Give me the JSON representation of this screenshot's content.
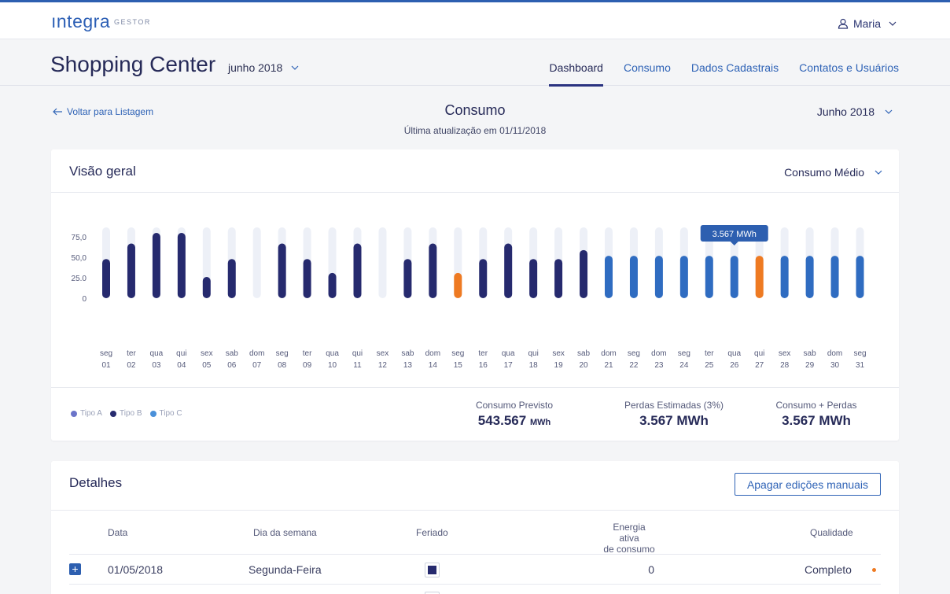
{
  "app": {
    "logo": "ıntegra",
    "logo_sub": "GESTOR",
    "user": "Maria"
  },
  "header": {
    "title": "Shopping Center",
    "month": "junho 2018",
    "tabs": [
      {
        "label": "Dashboard",
        "active": true
      },
      {
        "label": "Consumo",
        "active": false
      },
      {
        "label": "Dados Cadastrais",
        "active": false
      },
      {
        "label": "Contatos e Usuários",
        "active": false
      }
    ]
  },
  "section": {
    "back": "Voltar para Listagem",
    "title": "Consumo",
    "updated": "Última atualização em 01/11/2018",
    "period": "Junho 2018"
  },
  "overview": {
    "title": "Visão geral",
    "metric": "Consumo Médio",
    "legend": [
      {
        "label": "Tipo A",
        "color": "#6b74c9"
      },
      {
        "label": "Tipo B",
        "color": "#262a6e"
      },
      {
        "label": "Tipo C",
        "color": "#4a90d9"
      }
    ],
    "stats": [
      {
        "label": "Consumo Previsto",
        "value": "543.567",
        "unit": "MWh"
      },
      {
        "label": "Perdas Estimadas (3%)",
        "value": "3.567 MWh",
        "unit": ""
      },
      {
        "label": "Consumo + Perdas",
        "value": "3.567 MWh",
        "unit": ""
      }
    ]
  },
  "chart_data": {
    "type": "bar",
    "yticks": [
      "0",
      "25.0",
      "50,0",
      "75,0"
    ],
    "ylim": [
      0,
      81
    ],
    "days": [
      "seg",
      "ter",
      "qua",
      "qui",
      "sex",
      "sab",
      "dom",
      "seg",
      "ter",
      "qua",
      "qui",
      "sex",
      "sab",
      "dom",
      "seg",
      "ter",
      "qua",
      "qui",
      "sex",
      "sab",
      "dom",
      "seg",
      "dom",
      "seg",
      "ter",
      "qua",
      "qui",
      "sex",
      "sab",
      "dom",
      "seg"
    ],
    "dates": [
      "01",
      "02",
      "03",
      "04",
      "05",
      "06",
      "07",
      "08",
      "09",
      "10",
      "11",
      "12",
      "13",
      "14",
      "15",
      "16",
      "17",
      "18",
      "19",
      "20",
      "21",
      "22",
      "23",
      "24",
      "25",
      "26",
      "27",
      "28",
      "29",
      "30",
      "31"
    ],
    "values": [
      48,
      67,
      80,
      80,
      26,
      48,
      0,
      67,
      48,
      31,
      67,
      0,
      48,
      67,
      31,
      48,
      67,
      48,
      48,
      59,
      52,
      52,
      52,
      52,
      52,
      52,
      52,
      52,
      52,
      52,
      52
    ],
    "types": [
      "B",
      "B",
      "B",
      "B",
      "B",
      "B",
      "B",
      "B",
      "B",
      "B",
      "B",
      "B",
      "B",
      "B",
      "O",
      "B",
      "B",
      "B",
      "B",
      "B",
      "C",
      "C",
      "C",
      "C",
      "C",
      "C",
      "O",
      "C",
      "C",
      "C",
      "C"
    ],
    "colors": {
      "B": "#262a6e",
      "C": "#2f6cc1",
      "O": "#ee7a22",
      "track": "#edf0f7"
    },
    "tooltip": {
      "index": 25,
      "text": "3.567 MWh"
    }
  },
  "details": {
    "title": "Detalhes",
    "clear_button": "Apagar edições manuais",
    "columns": [
      "Data",
      "Dia da semana",
      "Feriado",
      "Energia ativa",
      "de consumo",
      "Qualidade"
    ],
    "rows": [
      {
        "date": "01/05/2018",
        "weekday": "Segunda-Feira",
        "energy": "0",
        "quality": "Completo"
      }
    ]
  }
}
